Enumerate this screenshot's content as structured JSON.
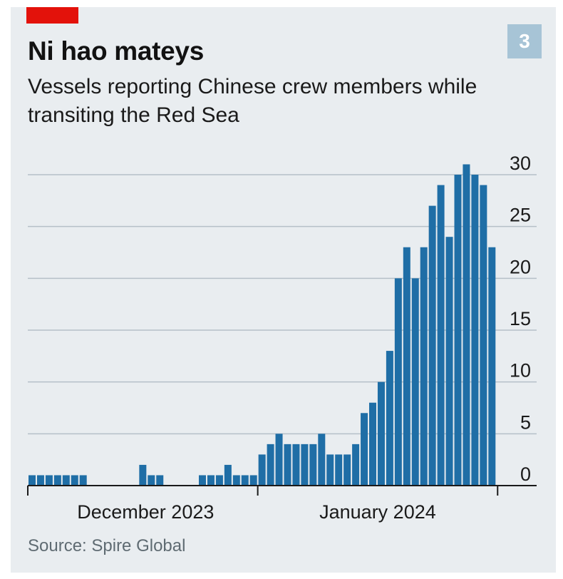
{
  "header": {
    "title": "Ni hao mateys",
    "subtitle": "Vessels reporting Chinese crew members while transiting the Red Sea",
    "chart_number": "3",
    "accent_color": "#e3120b",
    "badge_color": "#a7c4d6"
  },
  "footer": {
    "source": "Source: Spire Global"
  },
  "chart_data": {
    "type": "bar",
    "title": "Ni hao mateys",
    "subtitle": "Vessels reporting Chinese crew members while transiting the Red Sea",
    "xlabel": "",
    "ylabel": "",
    "ylim": [
      0,
      30
    ],
    "yticks": [
      0,
      5,
      10,
      15,
      20,
      25,
      30
    ],
    "y_axis_side": "right",
    "grid": true,
    "bar_color": "#1f6ea6",
    "month_labels": [
      "December 2023",
      "January 2024"
    ],
    "month_start_index": [
      0,
      27
    ],
    "values": [
      1,
      1,
      1,
      1,
      1,
      1,
      1,
      0,
      0,
      0,
      0,
      0,
      0,
      2,
      1,
      1,
      0,
      0,
      0,
      0,
      1,
      1,
      1,
      2,
      1,
      1,
      1,
      3,
      4,
      5,
      4,
      4,
      4,
      4,
      5,
      3,
      3,
      3,
      4,
      7,
      8,
      10,
      13,
      20,
      23,
      20,
      23,
      27,
      29,
      24,
      30,
      31,
      30,
      29,
      23
    ]
  }
}
